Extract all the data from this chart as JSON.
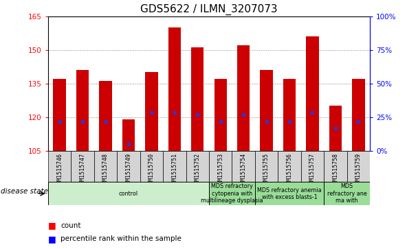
{
  "title": "GDS5622 / ILMN_3207073",
  "samples": [
    "GSM1515746",
    "GSM1515747",
    "GSM1515748",
    "GSM1515749",
    "GSM1515750",
    "GSM1515751",
    "GSM1515752",
    "GSM1515753",
    "GSM1515754",
    "GSM1515755",
    "GSM1515756",
    "GSM1515757",
    "GSM1515758",
    "GSM1515759"
  ],
  "counts": [
    137,
    141,
    136,
    119,
    140,
    160,
    151,
    137,
    152,
    141,
    137,
    156,
    125,
    137
  ],
  "percentile_values": [
    118,
    118,
    118,
    108,
    122,
    122,
    121,
    118,
    121,
    118,
    118,
    122,
    115,
    118
  ],
  "ylim": [
    105,
    165
  ],
  "yticks": [
    105,
    120,
    135,
    150,
    165
  ],
  "right_yticks": [
    0,
    25,
    50,
    75,
    100
  ],
  "bar_color": "#cc0000",
  "dot_color": "#3333cc",
  "bar_bottom": 105,
  "disease_groups": [
    {
      "label": "control",
      "start": 0,
      "end": 7
    },
    {
      "label": "MDS refractory\ncytopenia with\nmultilineage dysplasia",
      "start": 7,
      "end": 9
    },
    {
      "label": "MDS refractory anemia\nwith excess blasts-1",
      "start": 9,
      "end": 12
    },
    {
      "label": "MDS\nrefractory ane\nma with",
      "start": 12,
      "end": 14
    }
  ],
  "legend_count_label": "count",
  "legend_pct_label": "percentile rank within the sample",
  "tick_fontsize": 7.5,
  "title_fontsize": 11
}
